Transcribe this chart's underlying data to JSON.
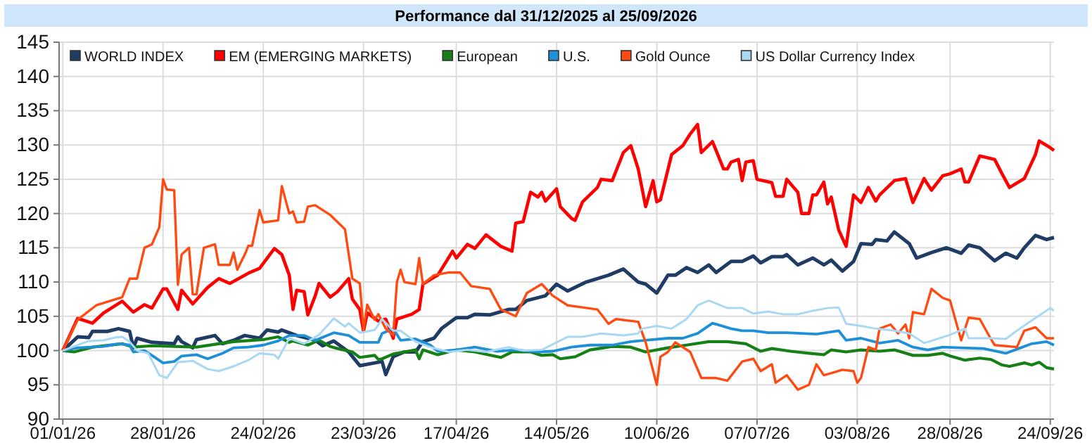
{
  "chart_data": {
    "type": "line",
    "title": "Performance dal 31/12/2025 al 25/09/2026",
    "xlim": [
      "2025-12-31",
      "2026-09-25"
    ],
    "xticks": [
      {
        "value": "2026-01-01",
        "label": "01/01/26"
      },
      {
        "value": "2026-01-28",
        "label": "28/01/26"
      },
      {
        "value": "2026-02-24",
        "label": "24/02/26"
      },
      {
        "value": "2026-03-23",
        "label": "23/03/26"
      },
      {
        "value": "2026-04-17",
        "label": "17/04/26"
      },
      {
        "value": "2026-05-14",
        "label": "14/05/26"
      },
      {
        "value": "2026-06-10",
        "label": "10/06/26"
      },
      {
        "value": "2026-07-07",
        "label": "07/07/26"
      },
      {
        "value": "2026-08-03",
        "label": "03/08/26"
      },
      {
        "value": "2026-08-28",
        "label": "28/08/26"
      },
      {
        "value": "2026-09-24",
        "label": "24/09/26"
      }
    ],
    "ylim": [
      90,
      145
    ],
    "yticks": [
      90,
      95,
      100,
      105,
      110,
      115,
      120,
      125,
      130,
      135,
      140,
      145
    ],
    "grid": true,
    "legend": "top left",
    "marker": "none",
    "line_style": "solid",
    "series": [
      {
        "name": "WORLD INDEX",
        "color": "#1f3d64",
        "x": [
          "2026-01-01",
          "2026-01-05",
          "2026-01-08",
          "2026-01-09",
          "2026-01-13",
          "2026-01-16",
          "2026-01-19",
          "2026-01-20",
          "2026-01-21",
          "2026-01-25",
          "2026-01-31",
          "2026-02-01",
          "2026-02-02",
          "2026-02-05",
          "2026-02-06",
          "2026-02-11",
          "2026-02-13",
          "2026-02-16",
          "2026-02-19",
          "2026-02-23",
          "2026-02-25",
          "2026-02-28",
          "2026-03-01",
          "2026-03-05",
          "2026-03-10",
          "2026-03-12",
          "2026-03-15",
          "2026-03-19",
          "2026-03-22",
          "2026-03-26",
          "2026-03-28",
          "2026-03-29",
          "2026-03-31",
          "2026-04-03",
          "2026-04-06",
          "2026-04-08",
          "2026-04-11",
          "2026-04-13",
          "2026-04-17",
          "2026-04-20",
          "2026-04-22",
          "2026-04-26",
          "2026-05-01",
          "2026-05-03",
          "2026-05-06",
          "2026-05-11",
          "2026-05-14",
          "2026-05-17",
          "2026-05-22",
          "2026-05-28",
          "2026-06-01",
          "2026-06-05",
          "2026-06-07",
          "2026-06-10",
          "2026-06-13",
          "2026-06-15",
          "2026-06-18",
          "2026-06-21",
          "2026-06-24",
          "2026-06-26",
          "2026-06-30",
          "2026-07-03",
          "2026-07-06",
          "2026-07-08",
          "2026-07-11",
          "2026-07-14",
          "2026-07-15",
          "2026-07-18",
          "2026-07-22",
          "2026-07-25",
          "2026-07-27",
          "2026-07-30",
          "2026-08-02",
          "2026-08-04",
          "2026-08-07",
          "2026-08-08",
          "2026-08-11",
          "2026-08-13",
          "2026-08-17",
          "2026-08-19",
          "2026-08-23",
          "2026-08-27",
          "2026-08-31",
          "2026-09-02",
          "2026-09-05",
          "2026-09-09",
          "2026-09-12",
          "2026-09-15",
          "2026-09-17",
          "2026-09-20",
          "2026-09-23",
          "2026-09-25"
        ],
        "values": [
          100,
          102,
          101.9,
          102.8,
          102.8,
          103.2,
          102.8,
          100.4,
          101.8,
          101.2,
          101,
          102,
          101.3,
          100.4,
          101.6,
          102.2,
          101,
          101.5,
          102.2,
          101.8,
          103,
          102.7,
          103,
          102.2,
          101.5,
          100.7,
          101.4,
          99.8,
          97.8,
          98.2,
          98.4,
          96.5,
          99.1,
          99.8,
          99.8,
          101.3,
          101.8,
          103.2,
          104.8,
          104.8,
          105.3,
          105.2,
          106,
          106,
          107.3,
          108,
          109.7,
          108.7,
          110,
          111,
          111.9,
          110,
          109.7,
          108.4,
          111,
          111,
          112.1,
          111.4,
          112.5,
          111.4,
          113,
          113,
          113.8,
          112.8,
          113.7,
          113.7,
          114,
          112.5,
          113.5,
          112.5,
          113.2,
          111.6,
          113,
          115.6,
          115.5,
          116.2,
          116,
          117.3,
          115.6,
          113.5,
          114.3,
          115,
          114.2,
          115.4,
          115,
          113.1,
          114.2,
          113.5,
          115,
          116.8,
          116.2,
          116.5
        ]
      },
      {
        "name": "EM (EMERGING MARKETS)",
        "color": "#ff0000",
        "x": [
          "2026-01-01",
          "2026-01-05",
          "2026-01-09",
          "2026-01-12",
          "2026-01-17",
          "2026-01-20",
          "2026-01-23",
          "2026-01-25",
          "2026-01-28",
          "2026-01-29",
          "2026-02-01",
          "2026-02-02",
          "2026-02-05",
          "2026-02-09",
          "2026-02-12",
          "2026-02-15",
          "2026-02-17",
          "2026-02-20",
          "2026-02-23",
          "2026-02-27",
          "2026-03-01",
          "2026-03-03",
          "2026-03-04",
          "2026-03-05",
          "2026-03-07",
          "2026-03-08",
          "2026-03-10",
          "2026-03-11",
          "2026-03-14",
          "2026-03-16",
          "2026-03-19",
          "2026-03-20",
          "2026-03-22",
          "2026-03-23",
          "2026-03-24",
          "2026-03-27",
          "2026-03-29",
          "2026-03-31",
          "2026-04-01",
          "2026-04-05",
          "2026-04-07",
          "2026-04-08",
          "2026-04-11",
          "2026-04-12",
          "2026-04-16",
          "2026-04-17",
          "2026-04-20",
          "2026-04-22",
          "2026-04-25",
          "2026-04-29",
          "2026-05-02",
          "2026-05-03",
          "2026-05-05",
          "2026-05-07",
          "2026-05-09",
          "2026-05-10",
          "2026-05-11",
          "2026-05-14",
          "2026-05-15",
          "2026-05-18",
          "2026-05-19",
          "2026-05-21",
          "2026-05-25",
          "2026-05-26",
          "2026-05-29",
          "2026-06-01",
          "2026-06-03",
          "2026-06-05",
          "2026-06-07",
          "2026-06-09",
          "2026-06-10",
          "2026-06-11",
          "2026-06-14",
          "2026-06-17",
          "2026-06-19",
          "2026-06-21",
          "2026-06-22",
          "2026-06-25",
          "2026-06-28",
          "2026-06-29",
          "2026-06-30",
          "2026-07-02",
          "2026-07-03",
          "2026-07-04",
          "2026-07-06",
          "2026-07-07",
          "2026-07-11",
          "2026-07-12",
          "2026-07-14",
          "2026-07-15",
          "2026-07-18",
          "2026-07-19",
          "2026-07-21",
          "2026-07-22",
          "2026-07-23",
          "2026-07-25",
          "2026-07-26",
          "2026-07-27",
          "2026-07-29",
          "2026-07-31",
          "2026-08-02",
          "2026-08-04",
          "2026-08-06",
          "2026-08-08",
          "2026-08-09",
          "2026-08-13",
          "2026-08-16",
          "2026-08-18",
          "2026-08-21",
          "2026-08-23",
          "2026-08-26",
          "2026-08-28",
          "2026-08-31",
          "2026-09-01",
          "2026-09-02",
          "2026-09-05",
          "2026-09-09",
          "2026-09-11",
          "2026-09-13",
          "2026-09-17",
          "2026-09-20",
          "2026-09-21",
          "2026-09-24",
          "2026-09-25"
        ],
        "values": [
          100,
          104.7,
          104,
          105.5,
          107.2,
          105.6,
          106.7,
          106.2,
          109,
          109,
          106,
          108.8,
          106.8,
          109.2,
          110.5,
          109.8,
          110.4,
          111.3,
          112,
          114.9,
          114,
          111,
          106,
          108.8,
          108.6,
          105.2,
          108,
          109.8,
          107.8,
          108.6,
          110.5,
          107.5,
          106,
          102.8,
          105.5,
          104.3,
          104.6,
          101.8,
          104.6,
          105.3,
          106,
          109.7,
          110.7,
          111,
          114.5,
          113.5,
          115.5,
          114.9,
          116.9,
          115.2,
          114.5,
          118.6,
          118.8,
          123.1,
          122.4,
          123.1,
          121.8,
          123.6,
          121,
          119.3,
          119,
          121.7,
          123.8,
          125,
          124.8,
          128.9,
          129.9,
          126.5,
          121,
          124.8,
          121.7,
          122,
          128.6,
          129.9,
          131.6,
          133,
          128.9,
          130.5,
          126.5,
          126.5,
          127.5,
          127.9,
          124.8,
          127.5,
          127.7,
          125,
          124.5,
          122.5,
          122.5,
          125,
          123.1,
          120,
          120,
          122.7,
          122.7,
          124.6,
          121.4,
          122.4,
          117.6,
          115.2,
          122.7,
          121.6,
          123.8,
          121.8,
          122.7,
          124.8,
          125.1,
          121.6,
          125.1,
          123.4,
          125.5,
          125.8,
          126.5,
          124.6,
          124.6,
          128.4,
          127.9,
          125.8,
          123.8,
          125.1,
          128.6,
          130.6,
          129.6,
          129.2
        ]
      },
      {
        "name": "European",
        "color": "#168016",
        "x": [
          "2026-01-01",
          "2026-01-04",
          "2026-01-09",
          "2026-01-17",
          "2026-01-20",
          "2026-01-25",
          "2026-02-06",
          "2026-02-12",
          "2026-02-16",
          "2026-02-24",
          "2026-02-28",
          "2026-03-03",
          "2026-03-04",
          "2026-03-08",
          "2026-03-11",
          "2026-03-14",
          "2026-03-16",
          "2026-03-20",
          "2026-03-22",
          "2026-03-26",
          "2026-03-27",
          "2026-03-28",
          "2026-03-31",
          "2026-04-03",
          "2026-04-06",
          "2026-04-07",
          "2026-04-08",
          "2026-04-12",
          "2026-04-17",
          "2026-04-22",
          "2026-04-29",
          "2026-05-02",
          "2026-05-07",
          "2026-05-10",
          "2026-05-13",
          "2026-05-15",
          "2026-05-19",
          "2026-05-23",
          "2026-05-29",
          "2026-06-03",
          "2026-06-07",
          "2026-06-13",
          "2026-06-18",
          "2026-06-24",
          "2026-06-29",
          "2026-07-04",
          "2026-07-08",
          "2026-07-11",
          "2026-07-16",
          "2026-07-21",
          "2026-07-25",
          "2026-07-27",
          "2026-07-31",
          "2026-08-04",
          "2026-08-09",
          "2026-08-13",
          "2026-08-18",
          "2026-08-22",
          "2026-08-26",
          "2026-08-28",
          "2026-09-01",
          "2026-09-05",
          "2026-09-08",
          "2026-09-11",
          "2026-09-13",
          "2026-09-17",
          "2026-09-19",
          "2026-09-21",
          "2026-09-23",
          "2026-09-25"
        ],
        "values": [
          100,
          99.8,
          100.5,
          101,
          100.5,
          100.7,
          100.5,
          101,
          101.3,
          101.6,
          102,
          101.2,
          101.4,
          100.8,
          101.5,
          100.6,
          100.3,
          99.8,
          99,
          99.3,
          98.7,
          98.8,
          99.5,
          99.8,
          100.1,
          98.8,
          100.1,
          99.4,
          100.1,
          99.8,
          99,
          99.8,
          99.8,
          99.3,
          99.4,
          98.8,
          99.1,
          100.1,
          100.6,
          100.5,
          99.8,
          100.4,
          100.8,
          101.3,
          101.3,
          101,
          99.9,
          100.3,
          99.9,
          99.6,
          99.4,
          100.1,
          99.8,
          100.1,
          99.9,
          100.1,
          99.3,
          99.3,
          99.6,
          99.2,
          98.6,
          98.9,
          98.7,
          97.9,
          97.7,
          98.2,
          97.9,
          98.3,
          97.5,
          97.3
        ]
      },
      {
        "name": "U.S.",
        "color": "#1e90d8",
        "x": [
          "2026-01-01",
          "2026-01-05",
          "2026-01-12",
          "2026-01-16",
          "2026-01-19",
          "2026-01-20",
          "2026-01-23",
          "2026-01-25",
          "2026-01-28",
          "2026-01-31",
          "2026-02-02",
          "2026-02-06",
          "2026-02-09",
          "2026-02-13",
          "2026-02-16",
          "2026-02-20",
          "2026-02-24",
          "2026-02-28",
          "2026-03-03",
          "2026-03-07",
          "2026-03-10",
          "2026-03-15",
          "2026-03-19",
          "2026-03-22",
          "2026-03-27",
          "2026-03-28",
          "2026-03-31",
          "2026-04-02",
          "2026-04-06",
          "2026-04-10",
          "2026-04-12",
          "2026-04-17",
          "2026-04-22",
          "2026-04-28",
          "2026-05-03",
          "2026-05-09",
          "2026-05-13",
          "2026-05-18",
          "2026-05-23",
          "2026-05-29",
          "2026-06-03",
          "2026-06-07",
          "2026-06-13",
          "2026-06-17",
          "2026-06-21",
          "2026-06-25",
          "2026-06-30",
          "2026-07-03",
          "2026-07-06",
          "2026-07-10",
          "2026-07-15",
          "2026-07-23",
          "2026-07-29",
          "2026-07-31",
          "2026-08-04",
          "2026-08-09",
          "2026-08-14",
          "2026-08-18",
          "2026-08-22",
          "2026-08-26",
          "2026-08-31",
          "2026-09-06",
          "2026-09-12",
          "2026-09-16",
          "2026-09-19",
          "2026-09-23",
          "2026-09-25"
        ],
        "values": [
          100,
          100.4,
          100.6,
          101,
          100.8,
          99.8,
          100,
          99.3,
          98.2,
          98.4,
          99.2,
          99.4,
          98.8,
          99.6,
          100.4,
          100.5,
          100.8,
          101.4,
          102.2,
          102.2,
          101.5,
          102.6,
          102.2,
          101.2,
          101.2,
          102.5,
          103.2,
          101.5,
          101.7,
          100.8,
          99.9,
          100.1,
          100.5,
          99.9,
          100.1,
          99.8,
          99.9,
          100.5,
          100.8,
          100.8,
          101.3,
          101.5,
          101.8,
          101.8,
          102.5,
          104,
          103.2,
          102.9,
          102.9,
          102.6,
          102.6,
          102.4,
          102.9,
          101.5,
          101.8,
          101.1,
          101.5,
          100.5,
          100.1,
          100.5,
          100.4,
          100.3,
          99.6,
          100.4,
          101,
          101.3,
          100.8
        ]
      },
      {
        "name": "Gold Ounce",
        "color": "#ff4b12",
        "x": [
          "2026-01-01",
          "2026-01-05",
          "2026-01-10",
          "2026-01-17",
          "2026-01-19",
          "2026-01-21",
          "2026-01-23",
          "2026-01-25",
          "2026-01-27",
          "2026-01-28",
          "2026-01-29",
          "2026-01-31",
          "2026-02-01",
          "2026-02-02",
          "2026-02-04",
          "2026-02-05",
          "2026-02-06",
          "2026-02-08",
          "2026-02-11",
          "2026-02-12",
          "2026-02-15",
          "2026-02-16",
          "2026-02-17",
          "2026-02-19",
          "2026-02-20",
          "2026-02-21",
          "2026-02-23",
          "2026-02-24",
          "2026-02-28",
          "2026-03-01",
          "2026-03-03",
          "2026-03-04",
          "2026-03-05",
          "2026-03-07",
          "2026-03-08",
          "2026-03-10",
          "2026-03-14",
          "2026-03-18",
          "2026-03-20",
          "2026-03-22",
          "2026-03-23",
          "2026-03-24",
          "2026-03-26",
          "2026-03-27",
          "2026-03-29",
          "2026-03-31",
          "2026-04-01",
          "2026-04-02",
          "2026-04-03",
          "2026-04-06",
          "2026-04-07",
          "2026-04-08",
          "2026-04-11",
          "2026-04-15",
          "2026-04-18",
          "2026-04-21",
          "2026-04-26",
          "2026-04-29",
          "2026-05-03",
          "2026-05-06",
          "2026-05-10",
          "2026-05-13",
          "2026-05-17",
          "2026-05-21",
          "2026-05-25",
          "2026-05-28",
          "2026-05-30",
          "2026-06-05",
          "2026-06-07",
          "2026-06-10",
          "2026-06-11",
          "2026-06-13",
          "2026-06-15",
          "2026-06-19",
          "2026-06-22",
          "2026-06-26",
          "2026-06-29",
          "2026-07-03",
          "2026-07-06",
          "2026-07-08",
          "2026-07-11",
          "2026-07-12",
          "2026-07-15",
          "2026-07-18",
          "2026-07-21",
          "2026-07-23",
          "2026-07-25",
          "2026-07-27",
          "2026-07-30",
          "2026-08-02",
          "2026-08-03",
          "2026-08-04",
          "2026-08-06",
          "2026-08-08",
          "2026-08-09",
          "2026-08-12",
          "2026-08-14",
          "2026-08-16",
          "2026-08-17",
          "2026-08-18",
          "2026-08-21",
          "2026-08-23",
          "2026-08-26",
          "2026-08-28",
          "2026-08-31",
          "2026-09-02",
          "2026-09-05",
          "2026-09-08",
          "2026-09-09",
          "2026-09-15",
          "2026-09-17",
          "2026-09-20",
          "2026-09-23",
          "2026-09-25"
        ],
        "values": [
          100,
          104.5,
          106.6,
          107.8,
          110.5,
          110.5,
          115,
          115.5,
          118,
          125,
          123.5,
          123.4,
          109.6,
          114,
          115,
          108.2,
          108.2,
          115,
          115.5,
          112.5,
          112.5,
          114.3,
          111.8,
          114,
          115.3,
          115.3,
          120.5,
          118.7,
          119,
          124,
          120,
          120.3,
          118.7,
          118.8,
          121,
          121.2,
          119.8,
          117.7,
          110.5,
          109.8,
          103,
          106.7,
          104.5,
          105.3,
          103.2,
          102.2,
          110,
          111.8,
          110,
          109.7,
          113.5,
          109.7,
          111,
          111.4,
          111.4,
          109.4,
          109,
          106,
          105,
          108.4,
          109.7,
          108,
          106.6,
          106.3,
          106,
          103.9,
          104.6,
          104.2,
          101.2,
          95,
          99.1,
          99.8,
          101.2,
          99.8,
          96,
          96,
          95.6,
          98.4,
          98.8,
          97,
          98,
          95.3,
          96.4,
          94.3,
          95,
          98,
          96.4,
          96.7,
          97.2,
          97,
          95.3,
          96,
          100.5,
          100.1,
          103.2,
          103.8,
          102.5,
          103.8,
          101.8,
          105.6,
          105.3,
          109,
          107.7,
          107.3,
          101.5,
          104.8,
          104.6,
          101.7,
          100.8,
          100.5,
          102.9,
          103.4,
          101.8,
          101.8
        ]
      },
      {
        "name": "US Dollar Currency Index",
        "color": "#a9d8f5",
        "x": [
          "2026-01-01",
          "2026-01-05",
          "2026-01-08",
          "2026-01-12",
          "2026-01-15",
          "2026-01-17",
          "2026-01-19",
          "2026-01-21",
          "2026-01-24",
          "2026-01-27",
          "2026-01-29",
          "2026-02-01",
          "2026-02-05",
          "2026-02-09",
          "2026-02-12",
          "2026-02-16",
          "2026-02-20",
          "2026-02-23",
          "2026-02-27",
          "2026-02-28",
          "2026-03-03",
          "2026-03-07",
          "2026-03-11",
          "2026-03-15",
          "2026-03-18",
          "2026-03-19",
          "2026-03-22",
          "2026-03-26",
          "2026-03-28",
          "2026-03-31",
          "2026-04-02",
          "2026-04-06",
          "2026-04-10",
          "2026-04-15",
          "2026-04-20",
          "2026-04-25",
          "2026-05-01",
          "2026-05-05",
          "2026-05-10",
          "2026-05-14",
          "2026-05-17",
          "2026-05-21",
          "2026-05-26",
          "2026-06-01",
          "2026-06-05",
          "2026-06-06",
          "2026-06-10",
          "2026-06-14",
          "2026-06-18",
          "2026-06-21",
          "2026-06-24",
          "2026-06-29",
          "2026-07-03",
          "2026-07-06",
          "2026-07-10",
          "2026-07-14",
          "2026-07-18",
          "2026-07-22",
          "2026-07-26",
          "2026-07-29",
          "2026-07-31",
          "2026-08-04",
          "2026-08-08",
          "2026-08-13",
          "2026-08-17",
          "2026-08-21",
          "2026-08-24",
          "2026-08-28",
          "2026-09-01",
          "2026-09-02",
          "2026-09-08",
          "2026-09-12",
          "2026-09-15",
          "2026-09-19",
          "2026-09-21",
          "2026-09-24",
          "2026-09-25"
        ],
        "values": [
          100,
          100.8,
          101.4,
          101.5,
          101.9,
          102,
          101.3,
          100,
          99.6,
          96.4,
          96,
          98.3,
          98.5,
          97.3,
          97,
          97.7,
          98.6,
          99.6,
          99.4,
          98.8,
          101.8,
          101,
          102.3,
          104.7,
          103.5,
          104,
          102.6,
          103,
          104.6,
          102.9,
          102.9,
          101.3,
          100.5,
          99.8,
          100.1,
          99.8,
          100.5,
          100,
          100.1,
          101.2,
          102,
          102,
          102.5,
          102.2,
          102.5,
          103.2,
          103.6,
          103.2,
          104.6,
          106.6,
          107.3,
          106.2,
          106.2,
          105.4,
          105.7,
          105.3,
          105.3,
          105.8,
          106.2,
          106.3,
          103.9,
          103.6,
          103.2,
          102.9,
          102.5,
          101.1,
          101.6,
          102.3,
          103.2,
          101.8,
          101.8,
          101.7,
          102.9,
          104.4,
          105.1,
          106.2,
          105.8
        ]
      }
    ]
  }
}
